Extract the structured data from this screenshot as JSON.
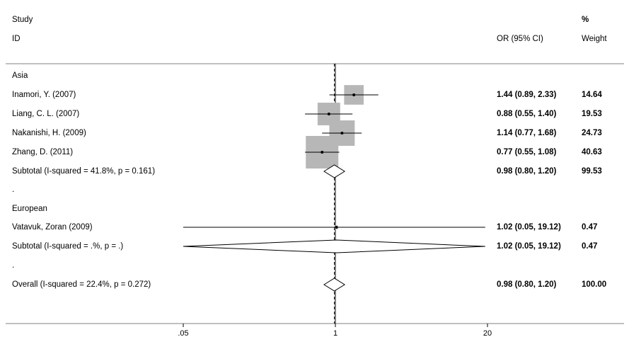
{
  "header": {
    "study_line1": "Study",
    "study_line2": "ID",
    "or_label": "OR (95% CI)",
    "weight_line1": "%",
    "weight_line2": "Weight"
  },
  "colors": {
    "box": "#b7b7b7",
    "line": "#000000",
    "border": "#808080",
    "background": "#ffffff"
  },
  "chart_data": {
    "type": "forest",
    "x_scale": "log",
    "x_ticks": [
      {
        "value": 0.05,
        "label": ".05"
      },
      {
        "value": 1,
        "label": "1"
      },
      {
        "value": 20,
        "label": "20"
      }
    ],
    "null_value": 1,
    "pooled_reference": 0.98,
    "rows": [
      {
        "kind": "group",
        "label": "Asia"
      },
      {
        "kind": "study",
        "label": "Inamori, Y. (2007)",
        "or": 1.44,
        "lo": 0.89,
        "hi": 2.33,
        "ci_text": "1.44 (0.89, 2.33)",
        "weight": 14.64,
        "weight_text": "14.64"
      },
      {
        "kind": "study",
        "label": "Liang, C. L. (2007)",
        "or": 0.88,
        "lo": 0.55,
        "hi": 1.4,
        "ci_text": "0.88 (0.55, 1.40)",
        "weight": 19.53,
        "weight_text": "19.53"
      },
      {
        "kind": "study",
        "label": "Nakanishi, H. (2009)",
        "or": 1.14,
        "lo": 0.77,
        "hi": 1.68,
        "ci_text": "1.14 (0.77, 1.68)",
        "weight": 24.73,
        "weight_text": "24.73"
      },
      {
        "kind": "study",
        "label": "Zhang, D. (2011)",
        "or": 0.77,
        "lo": 0.55,
        "hi": 1.08,
        "ci_text": "0.77 (0.55, 1.08)",
        "weight": 40.63,
        "weight_text": "40.63"
      },
      {
        "kind": "subtotal",
        "label": "Subtotal  (I-squared = 41.8%, p = 0.161)",
        "or": 0.98,
        "lo": 0.8,
        "hi": 1.2,
        "ci_text": "0.98 (0.80, 1.20)",
        "weight": 99.53,
        "weight_text": "99.53"
      },
      {
        "kind": "spacer",
        "label": "."
      },
      {
        "kind": "group",
        "label": "European"
      },
      {
        "kind": "study",
        "label": "Vatavuk, Zoran (2009)",
        "or": 1.02,
        "lo": 0.05,
        "hi": 19.12,
        "ci_text": "1.02 (0.05, 19.12)",
        "weight": 0.47,
        "weight_text": "0.47"
      },
      {
        "kind": "subtotal",
        "label": "Subtotal  (I-squared = .%, p = .)",
        "or": 1.02,
        "lo": 0.05,
        "hi": 19.12,
        "ci_text": "1.02 (0.05, 19.12)",
        "weight": 0.47,
        "weight_text": "0.47"
      },
      {
        "kind": "spacer",
        "label": "."
      },
      {
        "kind": "overall",
        "label": "Overall  (I-squared = 22.4%, p = 0.272)",
        "or": 0.98,
        "lo": 0.8,
        "hi": 1.2,
        "ci_text": "0.98 (0.80, 1.20)",
        "weight": 100.0,
        "weight_text": "100.00"
      }
    ]
  }
}
